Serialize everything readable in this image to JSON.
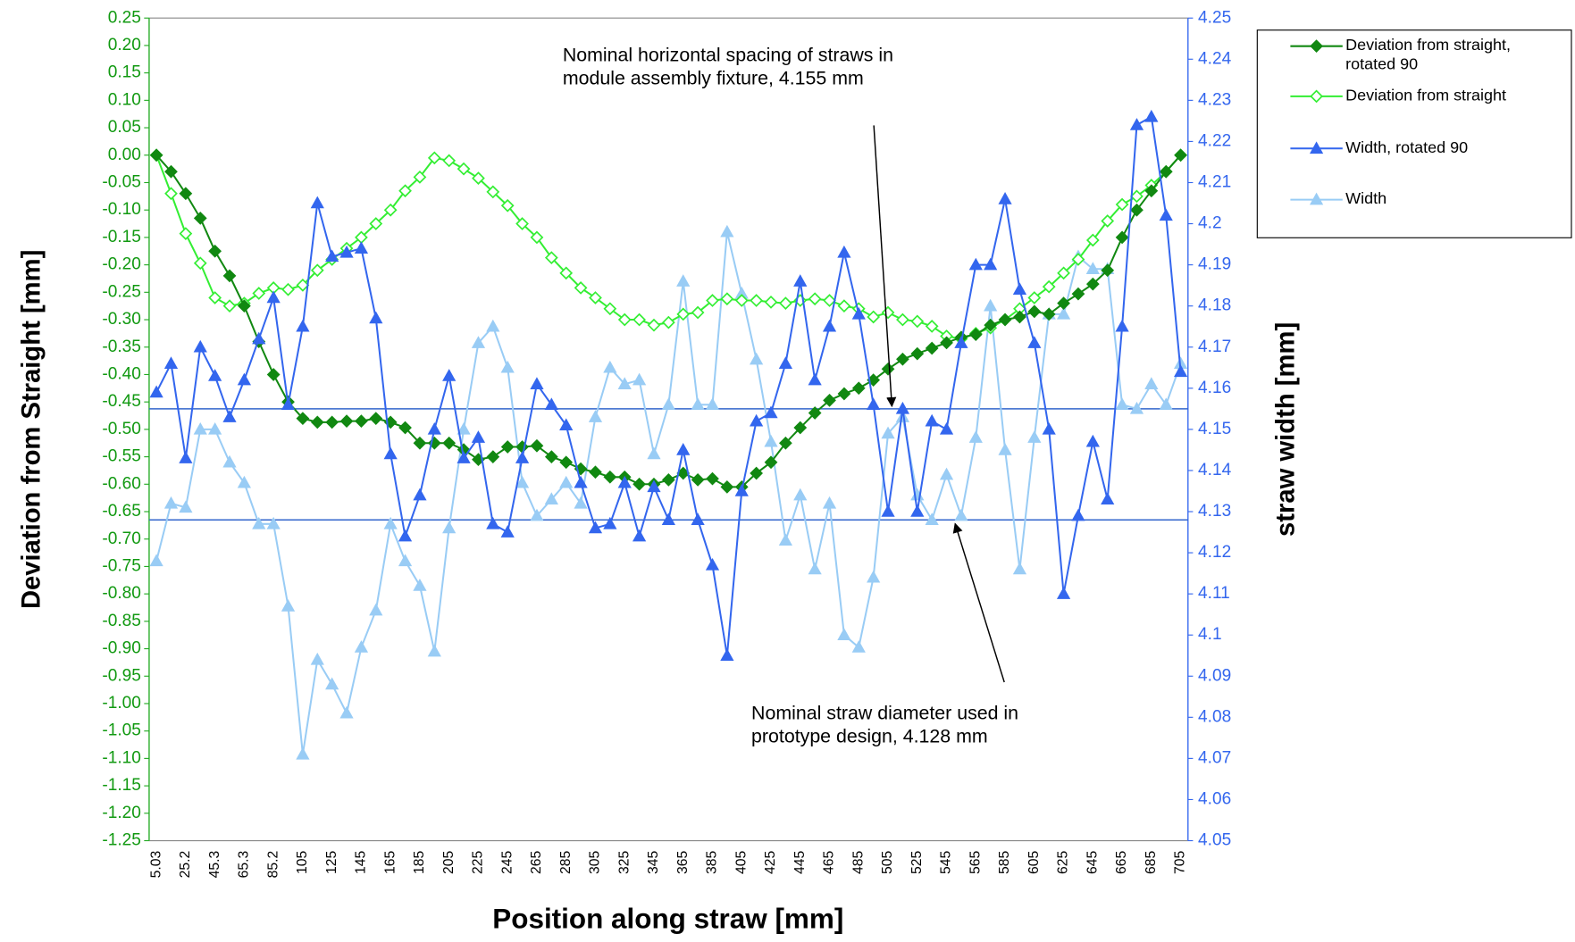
{
  "chart_data": {
    "type": "line",
    "xlabel": "Position along straw [mm]",
    "ylabel": "Deviation from Straight [mm]",
    "y2label": "straw width [mm]",
    "categories": [
      "5.03",
      null,
      "25.2",
      null,
      "45.3",
      null,
      "65.3",
      null,
      "85.2",
      null,
      "105",
      null,
      "125",
      null,
      "145",
      null,
      "165",
      null,
      "185",
      null,
      "205",
      null,
      "225",
      null,
      "245",
      null,
      "265",
      null,
      "285",
      null,
      "305",
      null,
      "325",
      null,
      "345",
      null,
      "365",
      null,
      "385",
      null,
      "405",
      null,
      "425",
      null,
      "445",
      null,
      "465",
      null,
      "485",
      null,
      "505",
      null,
      "525",
      null,
      "545",
      null,
      "565",
      null,
      "585",
      null,
      "605",
      null,
      "625",
      null,
      "645",
      null,
      "665",
      null,
      "685",
      null,
      "705"
    ],
    "series": [
      {
        "name": "Deviation from straight, rotated 90",
        "color": "#118811",
        "marker": "diamond",
        "filled": true,
        "axis": "y",
        "values": [
          0,
          -0.03,
          -0.07,
          -0.115,
          -0.175,
          -0.22,
          -0.275,
          -0.34,
          -0.4,
          -0.45,
          -0.48,
          -0.487,
          -0.487,
          -0.485,
          -0.485,
          -0.48,
          -0.487,
          -0.497,
          -0.525,
          -0.525,
          -0.525,
          -0.537,
          -0.555,
          -0.55,
          -0.532,
          -0.532,
          -0.53,
          -0.55,
          -0.56,
          -0.572,
          -0.578,
          -0.587,
          -0.587,
          -0.6,
          -0.6,
          -0.592,
          -0.58,
          -0.592,
          -0.59,
          -0.605,
          -0.605,
          -0.58,
          -0.56,
          -0.525,
          -0.497,
          -0.47,
          -0.447,
          -0.435,
          -0.425,
          -0.41,
          -0.39,
          -0.372,
          -0.362,
          -0.352,
          -0.342,
          -0.332,
          -0.327,
          -0.31,
          -0.3,
          -0.295,
          -0.285,
          -0.29,
          -0.27,
          -0.253,
          -0.235,
          -0.21,
          -0.15,
          -0.1,
          -0.065,
          -0.03,
          0
        ]
      },
      {
        "name": "Deviation from straight",
        "color": "#33ee33",
        "marker": "diamond",
        "filled": false,
        "axis": "y",
        "values": [
          0,
          -0.07,
          -0.143,
          -0.197,
          -0.26,
          -0.275,
          -0.27,
          -0.252,
          -0.242,
          -0.245,
          -0.237,
          -0.21,
          -0.19,
          -0.17,
          -0.15,
          -0.125,
          -0.1,
          -0.065,
          -0.04,
          -0.005,
          -0.01,
          -0.025,
          -0.042,
          -0.067,
          -0.092,
          -0.125,
          -0.15,
          -0.187,
          -0.215,
          -0.242,
          -0.26,
          -0.28,
          -0.3,
          -0.3,
          -0.31,
          -0.305,
          -0.29,
          -0.287,
          -0.265,
          -0.262,
          -0.265,
          -0.265,
          -0.268,
          -0.27,
          -0.265,
          -0.262,
          -0.265,
          -0.275,
          -0.28,
          -0.295,
          -0.287,
          -0.3,
          -0.303,
          -0.312,
          -0.33,
          -0.335,
          -0.325,
          -0.315,
          -0.3,
          -0.28,
          -0.26,
          -0.24,
          -0.215,
          -0.19,
          -0.155,
          -0.12,
          -0.09,
          -0.075,
          -0.055,
          -0.03,
          0
        ]
      },
      {
        "name": "Width, rotated 90",
        "color": "#3366ee",
        "marker": "triangle",
        "filled": true,
        "axis": "y2",
        "values": [
          4.159,
          4.166,
          4.143,
          4.17,
          4.163,
          4.153,
          4.162,
          4.172,
          4.182,
          4.156,
          4.175,
          4.205,
          4.192,
          4.193,
          4.194,
          4.177,
          4.144,
          4.124,
          4.134,
          4.15,
          4.163,
          4.143,
          4.148,
          4.127,
          4.125,
          4.143,
          4.161,
          4.156,
          4.151,
          4.137,
          4.126,
          4.127,
          4.137,
          4.124,
          4.136,
          4.128,
          4.145,
          4.128,
          4.117,
          4.095,
          4.135,
          4.152,
          4.154,
          4.166,
          4.186,
          4.162,
          4.175,
          4.193,
          4.178,
          4.156,
          4.13,
          4.155,
          4.13,
          4.152,
          4.15,
          4.171,
          4.19,
          4.19,
          4.206,
          4.184,
          4.171,
          4.15,
          4.11,
          4.129,
          4.147,
          4.133,
          4.175,
          4.224,
          4.226,
          4.202,
          4.164
        ]
      },
      {
        "name": "Width",
        "color": "#99ccf5",
        "marker": "triangle",
        "filled": true,
        "axis": "y2",
        "values": [
          4.118,
          4.132,
          4.131,
          4.15,
          4.15,
          4.142,
          4.137,
          4.127,
          4.127,
          4.107,
          4.071,
          4.094,
          4.088,
          4.081,
          4.097,
          4.106,
          4.127,
          4.118,
          4.112,
          4.096,
          4.126,
          4.15,
          4.171,
          4.175,
          4.165,
          4.137,
          4.129,
          4.133,
          4.137,
          4.132,
          4.153,
          4.165,
          4.161,
          4.162,
          4.144,
          4.156,
          4.186,
          4.156,
          4.156,
          4.198,
          4.183,
          4.167,
          4.147,
          4.123,
          4.134,
          4.116,
          4.132,
          4.1,
          4.097,
          4.114,
          4.149,
          4.153,
          4.134,
          4.128,
          4.139,
          4.129,
          4.148,
          4.18,
          4.145,
          4.116,
          4.148,
          4.178,
          4.178,
          4.192,
          4.189,
          4.189,
          4.156,
          4.155,
          4.161,
          4.156,
          4.166
        ]
      }
    ],
    "ylim": [
      -1.25,
      0.25
    ],
    "yticks": [
      0.25,
      {
        "value": 0.2,
        "label": "0.20"
      },
      0.15,
      {
        "value": 0.1,
        "label": "0.10"
      },
      0.05,
      {
        "value": 0,
        "label": "0.00"
      },
      -0.05,
      {
        "value": -0.1,
        "label": "-0.10"
      },
      -0.15,
      {
        "value": -0.2,
        "label": "-0.20"
      },
      -0.25,
      {
        "value": -0.3,
        "label": "-0.30"
      },
      -0.35,
      {
        "value": -0.4,
        "label": "-0.40"
      },
      -0.45,
      {
        "value": -0.5,
        "label": "-0.50"
      },
      -0.55,
      {
        "value": -0.6,
        "label": "-0.60"
      },
      -0.65,
      {
        "value": -0.7,
        "label": "-0.70"
      },
      -0.75,
      {
        "value": -0.8,
        "label": "-0.80"
      },
      -0.85,
      {
        "value": -0.9,
        "label": "-0.90"
      },
      -0.95,
      {
        "value": -1,
        "label": "-1.00"
      },
      -1.05,
      {
        "value": -1.1,
        "label": "-1.10"
      },
      -1.15,
      {
        "value": -1.2,
        "label": "-1.20"
      },
      -1.25
    ],
    "y2lim": [
      4.05,
      4.25
    ],
    "y2ticks": [
      4.25,
      4.24,
      4.23,
      4.22,
      4.21,
      4.2,
      4.19,
      4.18,
      4.17,
      4.16,
      4.15,
      4.14,
      4.13,
      4.12,
      4.11,
      4.1,
      4.09,
      4.08,
      4.07,
      4.06,
      4.05
    ],
    "reference_lines": [
      {
        "value": 4.155,
        "axis": "y2"
      },
      {
        "value": 4.128,
        "axis": "y2"
      }
    ],
    "annotations": [
      {
        "text": "Nominal horizontal spacing of straws in module assembly fixture, 4.155  mm"
      },
      {
        "text": "Nominal straw diameter used in prototype design, 4.128 mm"
      }
    ],
    "grid": false,
    "legend": "right"
  }
}
